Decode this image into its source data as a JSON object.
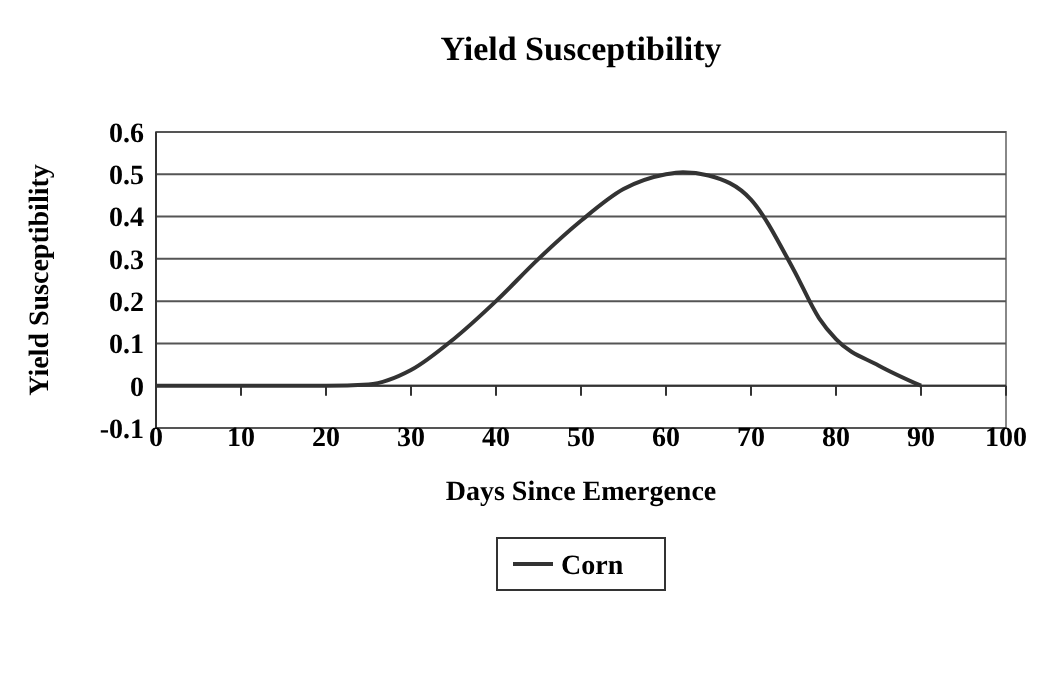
{
  "chart_data": {
    "type": "line",
    "title": "Yield Susceptibility",
    "xlabel": "Days Since Emergence",
    "ylabel": "Yield Susceptibility",
    "x": [
      0,
      10,
      20,
      25,
      30,
      35,
      40,
      45,
      50,
      55,
      60,
      62,
      65,
      70,
      75,
      78,
      80,
      85,
      90
    ],
    "series": [
      {
        "name": "Corn",
        "color": "#333333",
        "values": [
          0,
          0,
          0,
          0.003,
          0.037,
          0.11,
          0.2,
          0.3,
          0.39,
          0.465,
          0.5,
          0.505,
          0.497,
          0.44,
          0.275,
          0.16,
          0.11,
          0.048,
          0
        ]
      }
    ],
    "xlim": [
      0,
      100
    ],
    "xticks": [
      0,
      10,
      20,
      30,
      40,
      50,
      60,
      70,
      80,
      90,
      100
    ],
    "ylim": [
      -0.1,
      0.6
    ],
    "yticks": [
      {
        "value": -0.1,
        "label": "-0.1"
      },
      0,
      {
        "value": 0.1,
        "label": "0.1"
      },
      {
        "value": 0.2,
        "label": "0.2"
      },
      {
        "value": 0.3,
        "label": "0.3"
      },
      {
        "value": 0.4,
        "label": "0.4"
      },
      {
        "value": 0.5,
        "label": "0.5"
      },
      {
        "value": 0.6,
        "label": "0.6"
      }
    ],
    "grid": "y",
    "legend": "bottom",
    "marker": "none",
    "line_style": "solid"
  }
}
